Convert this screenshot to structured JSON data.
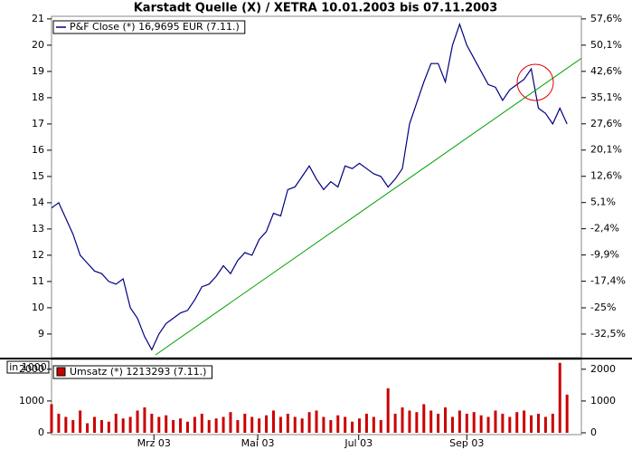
{
  "chart_data": [
    {
      "type": "line",
      "title": "Karstadt Quelle (X) / XETRA 10.01.2003 bis 07.11.2003",
      "xlim": [
        0,
        74
      ],
      "ylim": [
        8.1,
        21.1
      ],
      "yticks": [
        9,
        10,
        11,
        12,
        13,
        14,
        15,
        16,
        17,
        18,
        19,
        20,
        21
      ],
      "y2lim": [
        -39.25,
        58.35
      ],
      "y2ticks": [
        {
          "value": 57.6,
          "label": "57,6%"
        },
        {
          "value": 50.1,
          "label": "50,1%"
        },
        {
          "value": 42.6,
          "label": "42,6%"
        },
        {
          "value": 35.1,
          "label": "35,1%"
        },
        {
          "value": 27.6,
          "label": "27,6%"
        },
        {
          "value": 20.1,
          "label": "20,1%"
        },
        {
          "value": 12.6,
          "label": "12,6%"
        },
        {
          "value": 5.1,
          "label": "5,1%"
        },
        {
          "value": -2.4,
          "label": "-2,4%"
        },
        {
          "value": -9.9,
          "label": "-9,9%"
        },
        {
          "value": -17.4,
          "label": "-17,4%"
        },
        {
          "value": -25,
          "label": "-25%"
        },
        {
          "value": -32.5,
          "label": "-32,5%"
        }
      ],
      "series": [
        {
          "name": "P&F Close (*) 16,9695 EUR (7.11.)",
          "color": "#000080",
          "values": [
            13.8,
            14.0,
            13.4,
            12.8,
            12.0,
            11.7,
            11.4,
            11.3,
            11.0,
            10.9,
            11.1,
            10.0,
            9.6,
            8.9,
            8.4,
            9.0,
            9.4,
            9.6,
            9.8,
            9.9,
            10.3,
            10.8,
            10.9,
            11.2,
            11.6,
            11.3,
            11.8,
            12.1,
            12.0,
            12.6,
            12.9,
            13.6,
            13.5,
            14.5,
            14.6,
            15.0,
            15.4,
            14.9,
            14.5,
            14.8,
            14.6,
            15.4,
            15.3,
            15.5,
            15.3,
            15.1,
            15.0,
            14.6,
            14.9,
            15.3,
            17.0,
            17.8,
            18.6,
            19.3,
            19.3,
            18.6,
            20.0,
            20.8,
            20.0,
            19.5,
            19.0,
            18.5,
            18.4,
            17.9,
            18.3,
            18.5,
            18.7,
            19.1,
            17.6,
            17.4,
            17.0,
            17.6,
            17.0
          ]
        }
      ],
      "trendline": {
        "x": [
          14.5,
          74
        ],
        "values": [
          8.2,
          19.5
        ],
        "color": "#00a000"
      }
    },
    {
      "type": "bar",
      "y_label": "in 1000",
      "xlim": [
        0,
        74
      ],
      "ylim": [
        0,
        2250
      ],
      "yticks": [
        0,
        1000,
        2000
      ],
      "xticks": [
        {
          "value": 14.3,
          "label": "Mrz 03"
        },
        {
          "value": 28.8,
          "label": "Mai 03"
        },
        {
          "value": 42.9,
          "label": "Jul 03"
        },
        {
          "value": 58,
          "label": "Sep 03"
        }
      ],
      "series": [
        {
          "name": "Umsatz (*) 1213293 (7.11.)",
          "color": "#cc0000",
          "values": [
            900,
            600,
            500,
            400,
            700,
            300,
            500,
            400,
            350,
            600,
            450,
            500,
            700,
            800,
            600,
            500,
            550,
            400,
            450,
            350,
            500,
            600,
            400,
            450,
            500,
            650,
            400,
            600,
            500,
            450,
            550,
            700,
            500,
            600,
            500,
            450,
            650,
            700,
            500,
            400,
            550,
            500,
            350,
            450,
            600,
            500,
            400,
            1400,
            600,
            800,
            700,
            650,
            900,
            700,
            600,
            800,
            500,
            700,
            600,
            650,
            550,
            500,
            700,
            600,
            500,
            650,
            700,
            550,
            600,
            500,
            600,
            2200,
            1200
          ]
        }
      ]
    }
  ]
}
